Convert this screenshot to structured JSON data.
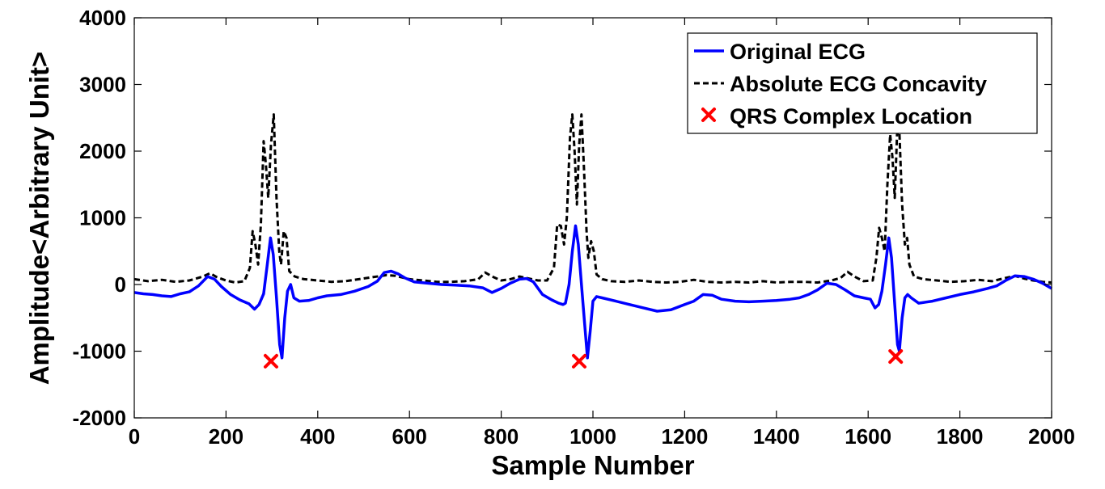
{
  "chart_data": {
    "type": "line",
    "title": "",
    "xlabel": "Sample Number",
    "ylabel": "Amplitude<Arbitrary Unit>",
    "xlim": [
      0,
      2000
    ],
    "ylim": [
      -2000,
      4000
    ],
    "x_ticks": [
      0,
      200,
      400,
      600,
      800,
      1000,
      1200,
      1400,
      1600,
      1800,
      2000
    ],
    "y_ticks": [
      -2000,
      -1000,
      0,
      1000,
      2000,
      3000,
      4000
    ],
    "grid": false,
    "legend_position": "top-right",
    "series": [
      {
        "name": "Original ECG",
        "style": "solid",
        "color": "#0000ff",
        "points": [
          [
            0,
            -120
          ],
          [
            20,
            -140
          ],
          [
            40,
            -150
          ],
          [
            60,
            -170
          ],
          [
            80,
            -180
          ],
          [
            100,
            -140
          ],
          [
            120,
            -110
          ],
          [
            140,
            -20
          ],
          [
            160,
            120
          ],
          [
            175,
            80
          ],
          [
            190,
            -30
          ],
          [
            210,
            -150
          ],
          [
            230,
            -230
          ],
          [
            250,
            -290
          ],
          [
            262,
            -370
          ],
          [
            272,
            -300
          ],
          [
            282,
            -140
          ],
          [
            290,
            300
          ],
          [
            297,
            700
          ],
          [
            303,
            450
          ],
          [
            310,
            -200
          ],
          [
            317,
            -900
          ],
          [
            322,
            -1100
          ],
          [
            328,
            -500
          ],
          [
            334,
            -100
          ],
          [
            341,
            0
          ],
          [
            348,
            -200
          ],
          [
            360,
            -250
          ],
          [
            380,
            -240
          ],
          [
            400,
            -200
          ],
          [
            420,
            -170
          ],
          [
            450,
            -150
          ],
          [
            480,
            -100
          ],
          [
            510,
            -30
          ],
          [
            530,
            50
          ],
          [
            545,
            180
          ],
          [
            560,
            200
          ],
          [
            575,
            160
          ],
          [
            590,
            100
          ],
          [
            610,
            40
          ],
          [
            640,
            20
          ],
          [
            670,
            0
          ],
          [
            700,
            -10
          ],
          [
            730,
            -20
          ],
          [
            760,
            -50
          ],
          [
            780,
            -120
          ],
          [
            800,
            -60
          ],
          [
            820,
            20
          ],
          [
            840,
            80
          ],
          [
            855,
            90
          ],
          [
            870,
            40
          ],
          [
            890,
            -150
          ],
          [
            910,
            -230
          ],
          [
            925,
            -280
          ],
          [
            935,
            -300
          ],
          [
            940,
            -280
          ],
          [
            948,
            0
          ],
          [
            955,
            500
          ],
          [
            962,
            880
          ],
          [
            968,
            600
          ],
          [
            975,
            0
          ],
          [
            982,
            -600
          ],
          [
            988,
            -1100
          ],
          [
            994,
            -700
          ],
          [
            1000,
            -250
          ],
          [
            1008,
            -180
          ],
          [
            1020,
            -200
          ],
          [
            1050,
            -250
          ],
          [
            1080,
            -300
          ],
          [
            1110,
            -350
          ],
          [
            1140,
            -400
          ],
          [
            1170,
            -380
          ],
          [
            1200,
            -300
          ],
          [
            1220,
            -250
          ],
          [
            1240,
            -150
          ],
          [
            1260,
            -160
          ],
          [
            1280,
            -220
          ],
          [
            1310,
            -250
          ],
          [
            1340,
            -260
          ],
          [
            1370,
            -250
          ],
          [
            1400,
            -240
          ],
          [
            1430,
            -220
          ],
          [
            1450,
            -200
          ],
          [
            1470,
            -150
          ],
          [
            1490,
            -80
          ],
          [
            1510,
            20
          ],
          [
            1530,
            0
          ],
          [
            1550,
            -80
          ],
          [
            1570,
            -170
          ],
          [
            1590,
            -200
          ],
          [
            1605,
            -220
          ],
          [
            1615,
            -350
          ],
          [
            1623,
            -300
          ],
          [
            1630,
            -100
          ],
          [
            1638,
            300
          ],
          [
            1645,
            700
          ],
          [
            1651,
            400
          ],
          [
            1657,
            -200
          ],
          [
            1664,
            -900
          ],
          [
            1668,
            -1000
          ],
          [
            1674,
            -500
          ],
          [
            1680,
            -200
          ],
          [
            1686,
            -150
          ],
          [
            1694,
            -200
          ],
          [
            1710,
            -280
          ],
          [
            1740,
            -250
          ],
          [
            1770,
            -200
          ],
          [
            1800,
            -150
          ],
          [
            1830,
            -110
          ],
          [
            1860,
            -60
          ],
          [
            1880,
            -20
          ],
          [
            1900,
            60
          ],
          [
            1920,
            130
          ],
          [
            1940,
            120
          ],
          [
            1960,
            80
          ],
          [
            1980,
            20
          ],
          [
            2000,
            -60
          ]
        ]
      },
      {
        "name": "Absolute ECG Concavity",
        "style": "dashed",
        "color": "#000000",
        "points": [
          [
            0,
            80
          ],
          [
            30,
            50
          ],
          [
            60,
            70
          ],
          [
            90,
            40
          ],
          [
            120,
            60
          ],
          [
            150,
            120
          ],
          [
            165,
            170
          ],
          [
            180,
            110
          ],
          [
            200,
            60
          ],
          [
            220,
            30
          ],
          [
            240,
            50
          ],
          [
            252,
            250
          ],
          [
            258,
            800
          ],
          [
            264,
            600
          ],
          [
            270,
            300
          ],
          [
            276,
            900
          ],
          [
            282,
            2150
          ],
          [
            287,
            1800
          ],
          [
            292,
            1300
          ],
          [
            298,
            2100
          ],
          [
            304,
            2550
          ],
          [
            310,
            1300
          ],
          [
            316,
            500
          ],
          [
            320,
            300
          ],
          [
            326,
            800
          ],
          [
            332,
            700
          ],
          [
            338,
            200
          ],
          [
            350,
            120
          ],
          [
            370,
            80
          ],
          [
            400,
            60
          ],
          [
            430,
            40
          ],
          [
            460,
            50
          ],
          [
            490,
            80
          ],
          [
            520,
            110
          ],
          [
            550,
            140
          ],
          [
            570,
            130
          ],
          [
            600,
            80
          ],
          [
            630,
            60
          ],
          [
            660,
            40
          ],
          [
            690,
            40
          ],
          [
            720,
            50
          ],
          [
            750,
            80
          ],
          [
            765,
            180
          ],
          [
            780,
            120
          ],
          [
            800,
            60
          ],
          [
            820,
            80
          ],
          [
            840,
            120
          ],
          [
            860,
            90
          ],
          [
            880,
            60
          ],
          [
            900,
            60
          ],
          [
            915,
            250
          ],
          [
            922,
            900
          ],
          [
            930,
            880
          ],
          [
            937,
            600
          ],
          [
            943,
            1000
          ],
          [
            950,
            2200
          ],
          [
            955,
            2550
          ],
          [
            960,
            2000
          ],
          [
            965,
            1200
          ],
          [
            970,
            2100
          ],
          [
            975,
            2550
          ],
          [
            980,
            1800
          ],
          [
            986,
            800
          ],
          [
            990,
            400
          ],
          [
            996,
            650
          ],
          [
            1002,
            500
          ],
          [
            1008,
            150
          ],
          [
            1020,
            80
          ],
          [
            1040,
            50
          ],
          [
            1070,
            40
          ],
          [
            1100,
            60
          ],
          [
            1130,
            40
          ],
          [
            1160,
            30
          ],
          [
            1190,
            40
          ],
          [
            1220,
            70
          ],
          [
            1250,
            40
          ],
          [
            1280,
            30
          ],
          [
            1310,
            40
          ],
          [
            1340,
            30
          ],
          [
            1370,
            50
          ],
          [
            1400,
            30
          ],
          [
            1430,
            40
          ],
          [
            1460,
            40
          ],
          [
            1490,
            30
          ],
          [
            1520,
            60
          ],
          [
            1540,
            100
          ],
          [
            1555,
            190
          ],
          [
            1570,
            120
          ],
          [
            1590,
            50
          ],
          [
            1610,
            60
          ],
          [
            1618,
            400
          ],
          [
            1624,
            850
          ],
          [
            1630,
            700
          ],
          [
            1636,
            500
          ],
          [
            1642,
            1500
          ],
          [
            1648,
            2250
          ],
          [
            1653,
            1900
          ],
          [
            1658,
            1300
          ],
          [
            1663,
            2250
          ],
          [
            1668,
            2300
          ],
          [
            1674,
            1200
          ],
          [
            1680,
            600
          ],
          [
            1685,
            700
          ],
          [
            1690,
            300
          ],
          [
            1700,
            120
          ],
          [
            1720,
            80
          ],
          [
            1750,
            60
          ],
          [
            1780,
            40
          ],
          [
            1810,
            50
          ],
          [
            1840,
            70
          ],
          [
            1870,
            50
          ],
          [
            1900,
            100
          ],
          [
            1920,
            130
          ],
          [
            1940,
            90
          ],
          [
            1960,
            60
          ],
          [
            1980,
            40
          ],
          [
            2000,
            30
          ]
        ]
      }
    ],
    "markers": {
      "name": "QRS Complex Location",
      "symbol": "x",
      "color": "#ff0000",
      "points": [
        [
          298,
          -1150
        ],
        [
          970,
          -1150
        ],
        [
          1660,
          -1080
        ]
      ]
    }
  }
}
